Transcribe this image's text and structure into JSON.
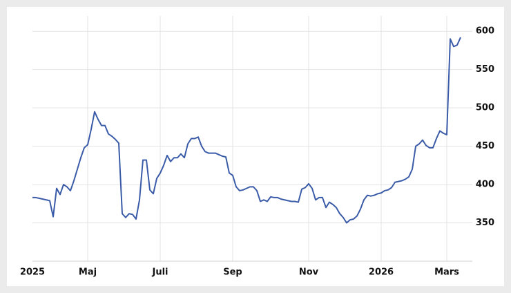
{
  "chart_data": {
    "type": "line",
    "color": "#3a5ba8",
    "grid": true,
    "ylim": [
      300,
      620
    ],
    "yticks": [
      350,
      400,
      450,
      500,
      550,
      600
    ],
    "categories": [
      "2025",
      null,
      null,
      null,
      null,
      null,
      null,
      null,
      null,
      null,
      null,
      null,
      null,
      null,
      null,
      null,
      "Maj",
      null,
      null,
      null,
      null,
      null,
      null,
      null,
      null,
      null,
      null,
      null,
      null,
      null,
      null,
      null,
      null,
      null,
      null,
      null,
      null,
      "Juli",
      null,
      null,
      null,
      null,
      null,
      null,
      null,
      null,
      null,
      null,
      null,
      null,
      null,
      null,
      null,
      null,
      null,
      null,
      null,
      null,
      "Sep",
      null,
      null,
      null,
      null,
      null,
      null,
      null,
      null,
      null,
      null,
      null,
      null,
      null,
      null,
      null,
      null,
      null,
      null,
      null,
      null,
      null,
      "Nov",
      null,
      null,
      null,
      null,
      null,
      null,
      null,
      null,
      null,
      null,
      null,
      null,
      null,
      null,
      null,
      null,
      null,
      null,
      null,
      null,
      "2026",
      null,
      null,
      null,
      null,
      null,
      null,
      null,
      null,
      null,
      null,
      null,
      null,
      null,
      null,
      null,
      null,
      null,
      null,
      "Mars",
      null,
      null,
      null,
      null
    ],
    "values": [
      383,
      383,
      382,
      381,
      380,
      379,
      358,
      395,
      387,
      400,
      397,
      392,
      405,
      420,
      435,
      448,
      452,
      472,
      495,
      485,
      477,
      477,
      466,
      463,
      459,
      454,
      362,
      357,
      362,
      361,
      355,
      380,
      432,
      432,
      393,
      388,
      408,
      415,
      425,
      438,
      430,
      435,
      435,
      440,
      435,
      453,
      460,
      460,
      462,
      450,
      443,
      441,
      441,
      441,
      439,
      437,
      436,
      415,
      412,
      397,
      392,
      393,
      395,
      397,
      397,
      392,
      378,
      380,
      378,
      384,
      383,
      383,
      381,
      380,
      379,
      378,
      378,
      377,
      394,
      396,
      401,
      395,
      380,
      383,
      383,
      370,
      377,
      374,
      370,
      362,
      357,
      350,
      354,
      355,
      359,
      368,
      380,
      386,
      385,
      386,
      388,
      389,
      392,
      393,
      396,
      403,
      404,
      405,
      407,
      410,
      420,
      450,
      453,
      458,
      451,
      448,
      448,
      460,
      470,
      467,
      465,
      590,
      580,
      582,
      592
    ]
  }
}
